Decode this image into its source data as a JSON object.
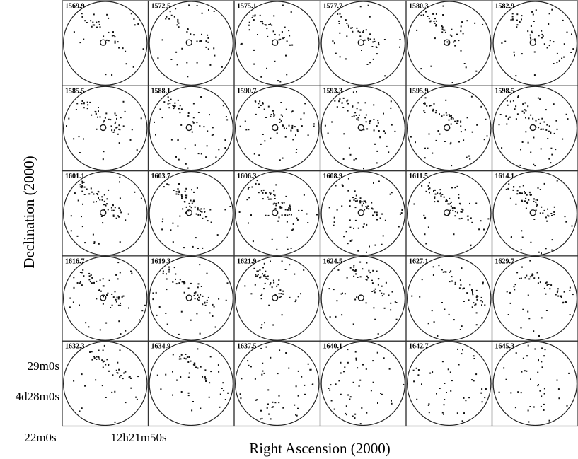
{
  "figure": {
    "panels": [
      "1569.9",
      "1572.5",
      "1575.1",
      "1577.7",
      "1580.3",
      "1582.9",
      "1585.5",
      "1588.1",
      "1590.7",
      "1593.3",
      "1595.9",
      "1598.5",
      "1601.1",
      "1603.7",
      "1606.3",
      "1608.9",
      "1611.5",
      "1614.1",
      "1616.7",
      "1619.3",
      "1621.9",
      "1624.5",
      "1627.1",
      "1629.7",
      "1632.3",
      "1634.9",
      "1637.5",
      "1640.1",
      "1642.7",
      "1645.3"
    ],
    "y_label": "Declination (2000)",
    "x_label": "Right Ascension (2000)",
    "y_tick_labels": [
      "29m0s",
      "4d28m0s"
    ],
    "x_tick_labels": [
      "22m0s",
      "12h21m50s"
    ]
  }
}
